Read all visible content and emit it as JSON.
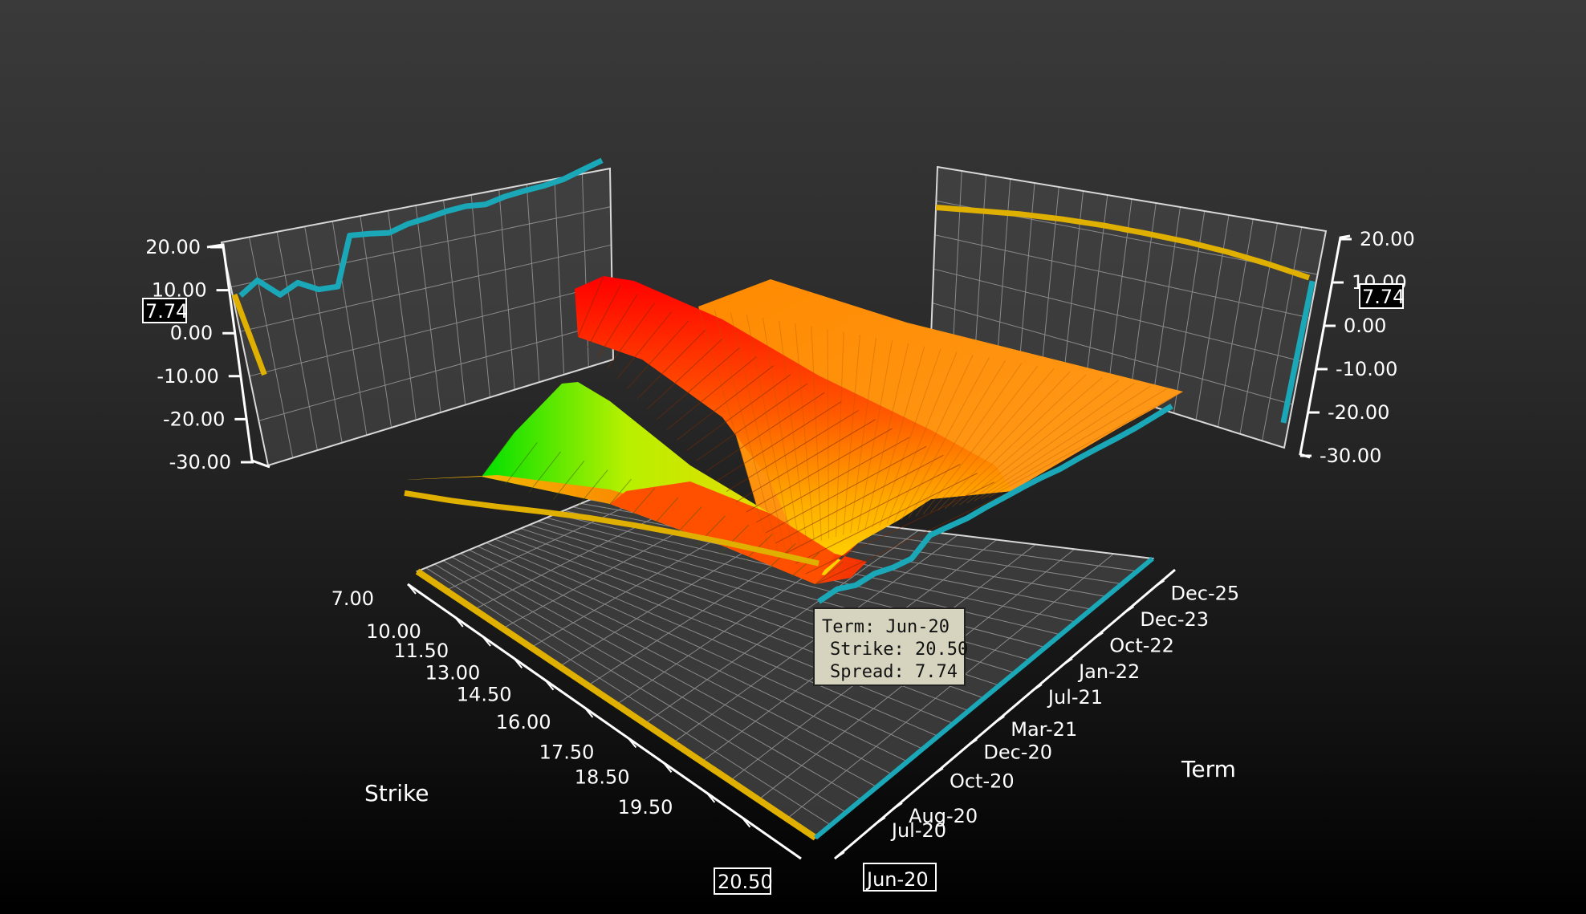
{
  "chart_data": {
    "type": "surface",
    "title": "",
    "strike_axis": {
      "label": "Strike",
      "ticks": [
        "7.00",
        "10.00",
        "11.50",
        "13.00",
        "14.50",
        "16.00",
        "17.50",
        "18.50",
        "19.50",
        "20.50"
      ]
    },
    "term_axis": {
      "label": "Term",
      "ticks": [
        "Jun-20",
        "Jul-20",
        "Aug-20",
        "Oct-20",
        "Dec-20",
        "Mar-21",
        "Jul-21",
        "Jan-22",
        "Oct-22",
        "Dec-23",
        "Dec-25"
      ]
    },
    "spread_axis_left": {
      "ticks": [
        "20.00",
        "10.00",
        "0.00",
        "-10.00",
        "-20.00",
        "-30.00"
      ],
      "ylim": [
        -30,
        20
      ]
    },
    "spread_axis_right": {
      "ticks": [
        "20.00",
        "10.00",
        "0.00",
        "-10.00",
        "-20.00",
        "-30.00"
      ],
      "ylim": [
        -30,
        20
      ]
    },
    "selected": {
      "term": "Jun-20",
      "strike": "20.50",
      "spread": "7.74"
    },
    "term_profile_at_strike_20_50": [
      7.7,
      10.2,
      6.0,
      7.8,
      5.3,
      5.0,
      16.0,
      15.5,
      14.8,
      16.0,
      16.5,
      17.2,
      17.5,
      17.0,
      18.0,
      18.5,
      18.8,
      19.5,
      21.0,
      22.5
    ],
    "strike_profile_at_term_jun_20": [
      -8.0,
      -6.0,
      -3.0,
      0.5,
      3.5,
      5.5,
      6.8,
      7.6,
      7.74,
      7.74
    ],
    "left_panel_strike_profile": [
      8.2,
      -10.5
    ],
    "right_panel_strike_profile_at_last_term": [
      8.1,
      9.5,
      10.8,
      11.6,
      12.0,
      12.0,
      11.8,
      11.2,
      10.2,
      8.9
    ],
    "right_panel_spread_at_last_strike": [
      8.3,
      -24.6
    ],
    "colorscale": [
      "#00e000",
      "#c8f000",
      "#ffe000",
      "#ff9a00",
      "#ff5000",
      "#ff0000"
    ]
  },
  "tooltip": {
    "term_line": "Term: Jun-20",
    "strike_line": "Strike: 20.50",
    "spread_line": "Spread: 7.74"
  },
  "value_labels": {
    "left": "7.74",
    "right": "7.74",
    "strike": "20.50",
    "term": "Jun-20"
  },
  "colors": {
    "term_series": "#1aa8b8",
    "strike_series": "#e0b000"
  }
}
